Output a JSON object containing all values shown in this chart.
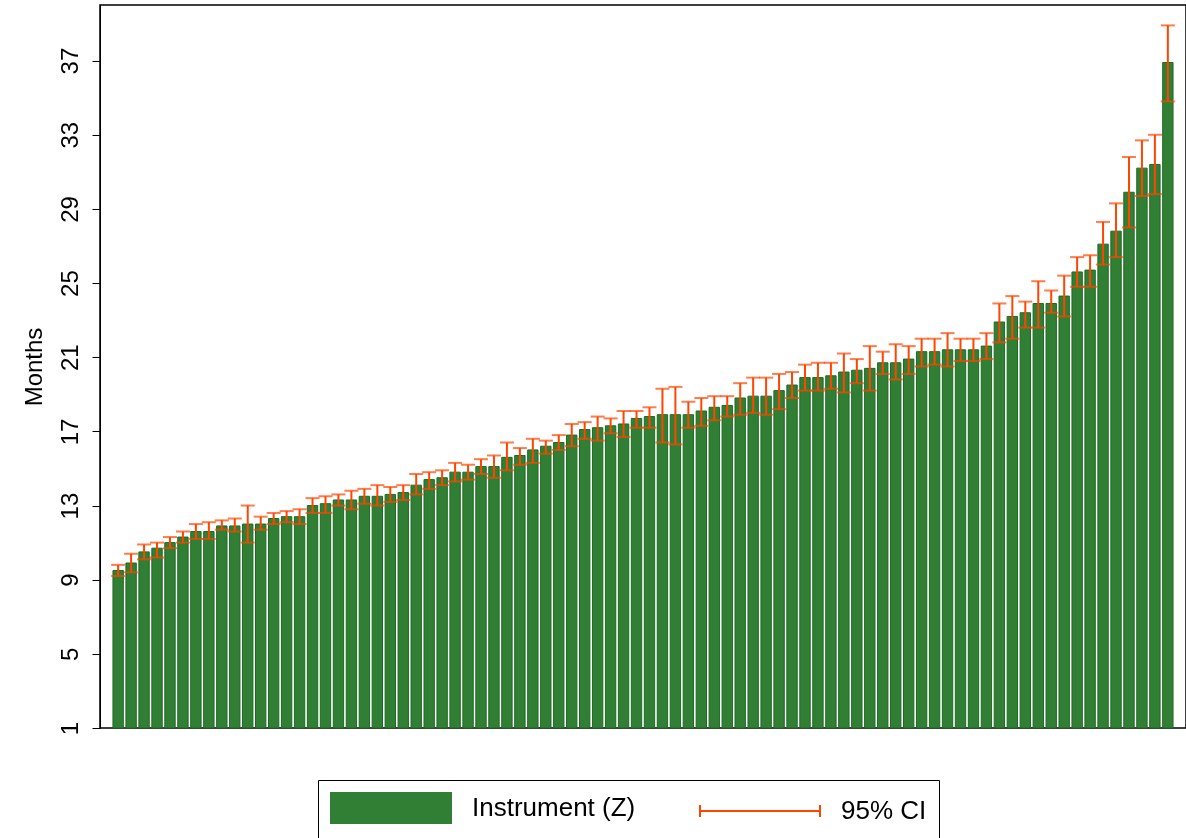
{
  "chart_data": {
    "type": "bar",
    "ylabel": "Months",
    "ylim": [
      1,
      40
    ],
    "yticks": [
      1,
      5,
      9,
      13,
      17,
      21,
      25,
      29,
      33,
      37
    ],
    "grid": false,
    "legend": "bottom",
    "tick_labels": "y",
    "annotations": [
      "95% CI"
    ],
    "categories": [
      null,
      null,
      null,
      null,
      null,
      null,
      null,
      null,
      null,
      null,
      null,
      null,
      null,
      null,
      null,
      null,
      null,
      null,
      null,
      null,
      null,
      null,
      null,
      null,
      null,
      null,
      null,
      null,
      null,
      null,
      null,
      null,
      null,
      null,
      null,
      null,
      null,
      null,
      null,
      null,
      null,
      null,
      null,
      null,
      null,
      null,
      null,
      null,
      null,
      null,
      null,
      null,
      null,
      null,
      null,
      null,
      null,
      null,
      null,
      null,
      null,
      null,
      null,
      null,
      null,
      null,
      null,
      null,
      null,
      null,
      null,
      null,
      null,
      null,
      null,
      null,
      null,
      null,
      null,
      null,
      null,
      null
    ],
    "series": [
      {
        "name": "Instrument (Z)",
        "color": "#317f34",
        "values": [
          9.5,
          9.9,
          10.5,
          10.7,
          11.0,
          11.3,
          11.6,
          11.6,
          11.9,
          11.9,
          12.0,
          12.0,
          12.3,
          12.4,
          12.4,
          13.0,
          13.1,
          13.3,
          13.3,
          13.5,
          13.5,
          13.6,
          13.7,
          14.1,
          14.4,
          14.5,
          14.8,
          14.8,
          15.1,
          15.1,
          15.6,
          15.7,
          16.0,
          16.2,
          16.4,
          16.8,
          17.1,
          17.2,
          17.3,
          17.4,
          17.7,
          17.8,
          17.9,
          17.9,
          17.9,
          18.1,
          18.3,
          18.4,
          18.8,
          18.9,
          18.9,
          19.2,
          19.5,
          19.9,
          19.9,
          20.0,
          20.2,
          20.3,
          20.4,
          20.7,
          20.7,
          20.9,
          21.3,
          21.3,
          21.4,
          21.4,
          21.4,
          21.6,
          22.9,
          23.2,
          23.4,
          23.9,
          23.9,
          24.3,
          25.6,
          25.7,
          27.1,
          27.8,
          29.9,
          31.2,
          31.4,
          36.9
        ],
        "errors": [
          [
            9.2,
            9.8
          ],
          [
            9.4,
            10.4
          ],
          [
            10.1,
            10.9
          ],
          [
            10.2,
            11.0
          ],
          [
            10.7,
            11.3
          ],
          [
            11.0,
            11.6
          ],
          [
            11.2,
            12.0
          ],
          [
            11.2,
            12.1
          ],
          [
            11.7,
            12.2
          ],
          [
            11.6,
            12.3
          ],
          [
            11.0,
            13.0
          ],
          [
            11.7,
            12.4
          ],
          [
            12.0,
            12.6
          ],
          [
            12.1,
            12.7
          ],
          [
            12.0,
            12.8
          ],
          [
            12.6,
            13.4
          ],
          [
            12.6,
            13.5
          ],
          [
            13.0,
            13.6
          ],
          [
            12.8,
            13.8
          ],
          [
            13.1,
            13.9
          ],
          [
            13.0,
            14.1
          ],
          [
            13.2,
            14.0
          ],
          [
            13.3,
            14.1
          ],
          [
            13.6,
            14.7
          ],
          [
            13.9,
            14.8
          ],
          [
            14.1,
            14.9
          ],
          [
            14.3,
            15.3
          ],
          [
            14.4,
            15.2
          ],
          [
            14.7,
            15.5
          ],
          [
            14.5,
            15.7
          ],
          [
            14.9,
            16.4
          ],
          [
            15.2,
            16.1
          ],
          [
            15.3,
            16.6
          ],
          [
            15.8,
            16.5
          ],
          [
            16.0,
            16.8
          ],
          [
            16.2,
            17.4
          ],
          [
            16.6,
            17.5
          ],
          [
            16.5,
            17.8
          ],
          [
            16.9,
            17.7
          ],
          [
            16.7,
            18.1
          ],
          [
            17.2,
            18.1
          ],
          [
            17.2,
            18.3
          ],
          [
            16.4,
            19.3
          ],
          [
            16.3,
            19.4
          ],
          [
            17.2,
            18.6
          ],
          [
            17.3,
            18.8
          ],
          [
            17.6,
            18.9
          ],
          [
            17.8,
            18.9
          ],
          [
            17.9,
            19.6
          ],
          [
            18.0,
            19.9
          ],
          [
            17.9,
            19.9
          ],
          [
            18.2,
            20.1
          ],
          [
            18.8,
            20.2
          ],
          [
            19.2,
            20.6
          ],
          [
            19.2,
            20.7
          ],
          [
            19.3,
            20.7
          ],
          [
            19.1,
            21.2
          ],
          [
            19.6,
            20.9
          ],
          [
            19.2,
            21.6
          ],
          [
            20.1,
            21.3
          ],
          [
            19.8,
            21.7
          ],
          [
            20.1,
            21.6
          ],
          [
            20.5,
            22.0
          ],
          [
            20.6,
            22.0
          ],
          [
            20.5,
            22.3
          ],
          [
            20.8,
            22.0
          ],
          [
            20.8,
            22.0
          ],
          [
            20.9,
            22.3
          ],
          [
            21.8,
            23.9
          ],
          [
            22.0,
            24.3
          ],
          [
            22.6,
            24.0
          ],
          [
            22.6,
            25.1
          ],
          [
            23.4,
            24.6
          ],
          [
            23.2,
            25.4
          ],
          [
            24.8,
            26.4
          ],
          [
            24.8,
            26.5
          ],
          [
            26.0,
            28.3
          ],
          [
            26.4,
            29.3
          ],
          [
            28.0,
            31.8
          ],
          [
            29.7,
            32.7
          ],
          [
            29.8,
            33.0
          ],
          [
            34.8,
            38.9
          ]
        ]
      }
    ]
  }
}
